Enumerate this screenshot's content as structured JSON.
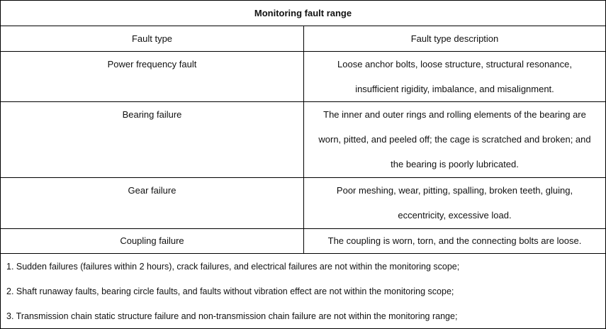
{
  "title": "Monitoring fault range",
  "headers": [
    "Fault type",
    "Fault type description"
  ],
  "rows": [
    {
      "type": "Power frequency fault",
      "description": [
        "Loose anchor bolts, loose structure, structural resonance,",
        "insufficient rigidity, imbalance, and misalignment."
      ]
    },
    {
      "type": "Bearing failure",
      "description": [
        "The inner and outer rings and rolling elements of the bearing are",
        "worn, pitted, and peeled off; the cage is scratched and broken; and",
        "the bearing is poorly lubricated."
      ]
    },
    {
      "type": "Gear failure",
      "description": [
        "Poor meshing, wear, pitting, spalling, broken teeth, gluing,",
        "eccentricity, excessive load."
      ]
    },
    {
      "type": "Coupling failure",
      "description": [
        "The coupling is worn, torn, and the connecting bolts are loose."
      ]
    }
  ],
  "notes": [
    "1. Sudden failures (failures within 2 hours), crack failures, and electrical failures are not within the monitoring scope;",
    "2. Shaft runaway faults, bearing circle faults, and faults without vibration effect are not within the monitoring scope;",
    "3. Transmission chain static structure failure and non-transmission chain failure are not within the monitoring range;"
  ]
}
